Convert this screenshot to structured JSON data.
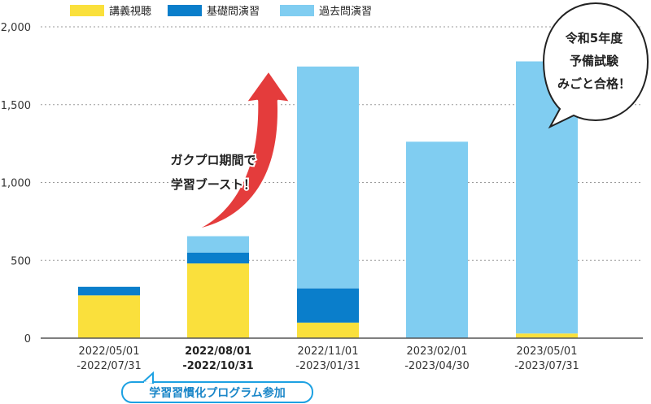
{
  "chart_data": {
    "type": "bar",
    "stacked": true,
    "categories": [
      [
        "2022/05/01",
        "-2022/07/31"
      ],
      [
        "2022/08/01",
        "-2022/10/31"
      ],
      [
        "2022/11/01",
        "-2023/01/31"
      ],
      [
        "2023/02/01",
        "-2023/04/30"
      ],
      [
        "2023/05/01",
        "-2023/07/31"
      ]
    ],
    "highlight_category": 1,
    "series": [
      {
        "name": "講義視聴",
        "color": "#FAE03C",
        "values": [
          275,
          480,
          100,
          0,
          30
        ]
      },
      {
        "name": "基礎問演習",
        "color": "#0A7ECB",
        "values": [
          55,
          70,
          220,
          0,
          0
        ]
      },
      {
        "name": "過去問演習",
        "color": "#80CDF1",
        "values": [
          0,
          105,
          1425,
          1262,
          1748
        ]
      }
    ],
    "ylim": [
      0,
      2000
    ],
    "yticks": [
      0,
      500,
      1000,
      1500,
      2000
    ],
    "ytick_labels": [
      "0",
      "500",
      "1,000",
      "1,500",
      "2,000"
    ],
    "grid": true,
    "legend": "top-left",
    "annotations": {
      "arrow_text": [
        "ガクプロ期間で",
        "学習ブースト！"
      ],
      "program_badge": "学習習慣化プログラム参加",
      "speech_bubble": [
        "令和5年度",
        "予備試験",
        "みごと合格！"
      ]
    }
  }
}
